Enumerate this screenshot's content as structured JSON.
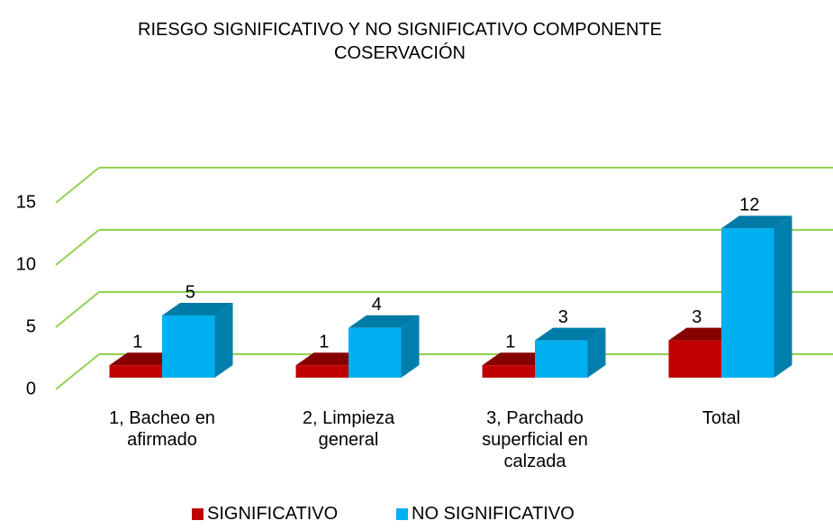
{
  "chart_data": {
    "type": "bar3d",
    "title": "RIESGO SIGNIFICATIVO Y NO SIGNIFICATIVO COMPONENTE COSERVACIÓN",
    "categories": [
      "1, Bacheo en afirmado",
      "2, Limpieza general",
      "3, Parchado superficial en calzada",
      "Total"
    ],
    "series": [
      {
        "name": "SIGNIFICATIVO",
        "color": "#c00000",
        "values": [
          1,
          1,
          1,
          3
        ]
      },
      {
        "name": "NO SIGNIFICATIVO",
        "color": "#00b0f0",
        "values": [
          5,
          4,
          3,
          12
        ]
      }
    ],
    "ylim": [
      0,
      15
    ],
    "yticks": [
      0,
      5,
      10,
      15
    ],
    "grid": true,
    "grid_color": "#92d050",
    "legend": "bottom"
  }
}
